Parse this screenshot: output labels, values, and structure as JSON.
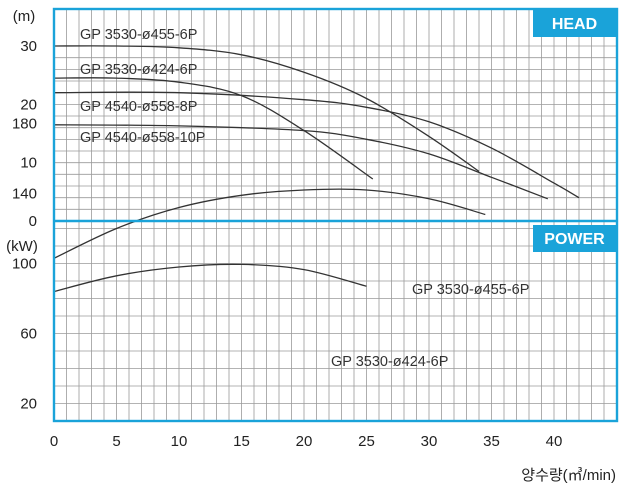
{
  "colors": {
    "frame": "#1aa3d9",
    "banner": "#1aa3d9",
    "curve": "#333333",
    "grid": "#9a9a9a"
  },
  "x_axis": {
    "ticks": [
      "0",
      "5",
      "10",
      "15",
      "20",
      "25",
      "30",
      "35",
      "40"
    ],
    "label": "양수량(㎥/min)"
  },
  "chart_data": [
    {
      "type": "line",
      "panel_label": "HEAD",
      "ylabel": "(m)",
      "xlim": [
        0,
        45
      ],
      "ylim": [
        0,
        32
      ],
      "yticks": [
        0,
        10,
        20,
        30
      ],
      "ytick_labels": [
        "0",
        "10",
        "20",
        "30"
      ],
      "grid": true,
      "series": [
        {
          "name": "GP 3530-ø455-6P",
          "x": [
            0,
            5,
            10,
            15,
            20,
            25,
            30,
            34
          ],
          "y": [
            30,
            30,
            29.7,
            28.5,
            25.5,
            21,
            14.5,
            8.5
          ]
        },
        {
          "name": "GP 3530-ø424-6P",
          "x": [
            0,
            5,
            10,
            15,
            20,
            25.5
          ],
          "y": [
            24.5,
            24.5,
            23.8,
            21.5,
            15.5,
            7.2
          ]
        },
        {
          "name": "GP 4540-ø558-8P",
          "x": [
            0,
            10,
            20,
            25,
            30,
            35,
            40,
            42
          ],
          "y": [
            22,
            22,
            20.8,
            19.5,
            17,
            12.5,
            6.5,
            4
          ]
        },
        {
          "name": "GP 4540-ø558-10P",
          "x": [
            0,
            10,
            20,
            25,
            30,
            35,
            39.5
          ],
          "y": [
            16.5,
            16.3,
            15.5,
            14,
            11.5,
            7.5,
            3.8
          ]
        }
      ]
    },
    {
      "type": "line",
      "panel_label": "POWER",
      "ylabel": "(kW)",
      "xlim": [
        0,
        45
      ],
      "ylim": [
        0,
        190
      ],
      "yticks": [
        20,
        60,
        100,
        140,
        180
      ],
      "ytick_labels": [
        "20",
        "60",
        "100",
        "140",
        "180"
      ],
      "grid": true,
      "series": [
        {
          "name": "GP 3530-ø455-6P",
          "x": [
            0,
            5,
            10,
            15,
            20,
            25,
            30,
            34.5
          ],
          "y": [
            103,
            120,
            132,
            139,
            142,
            142,
            137,
            128
          ]
        },
        {
          "name": "GP 3530-ø424-6P",
          "x": [
            0,
            5,
            10,
            15,
            20,
            25
          ],
          "y": [
            84,
            93,
            98,
            99.5,
            96.5,
            87
          ]
        }
      ]
    }
  ]
}
